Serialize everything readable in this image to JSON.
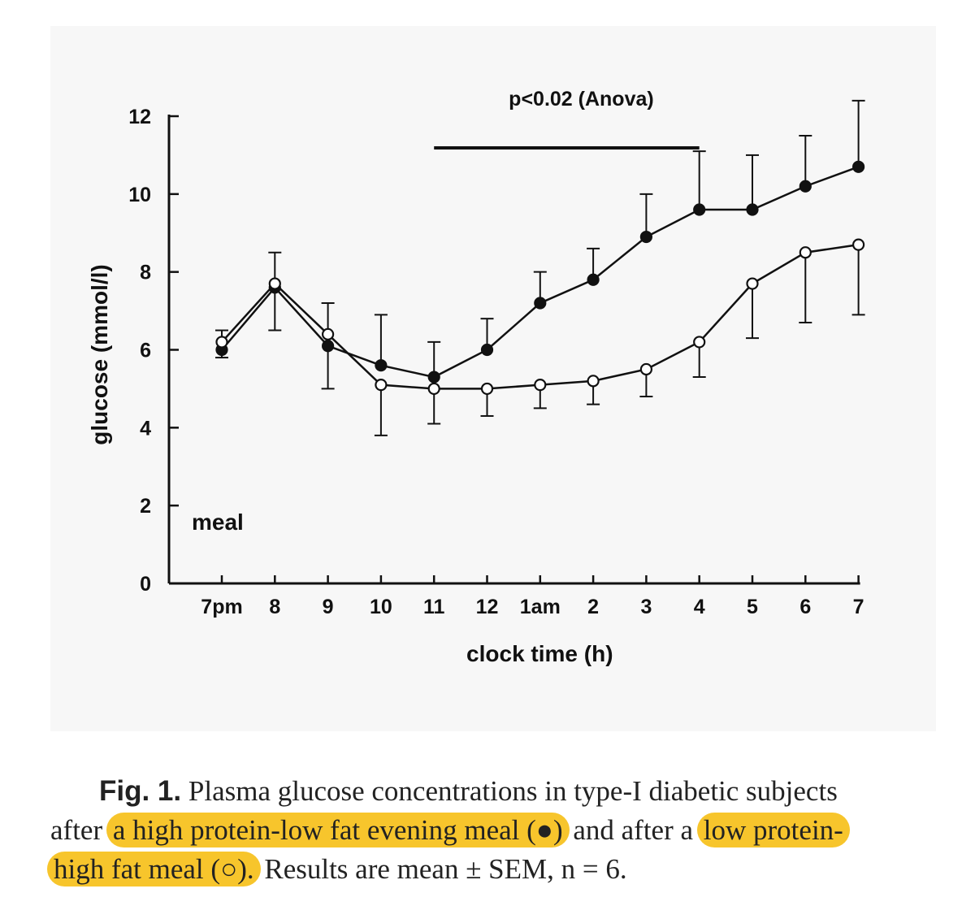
{
  "chart_data": {
    "type": "line",
    "title": "",
    "xlabel": "clock time (h)",
    "ylabel": "glucose (mmol/l)",
    "ylim": [
      0,
      12
    ],
    "yticks": [
      0,
      2,
      4,
      6,
      8,
      10,
      12
    ],
    "categories": [
      "7pm",
      "8",
      "9",
      "10",
      "11",
      "12",
      "1am",
      "2",
      "3",
      "4",
      "5",
      "6",
      "7"
    ],
    "grid": false,
    "legend": "none",
    "series": [
      {
        "marker": "filled-circle",
        "values": [
          6.0,
          7.6,
          6.1,
          5.6,
          5.3,
          6.0,
          7.2,
          7.8,
          8.9,
          9.6,
          9.6,
          10.2,
          10.7
        ],
        "err": [
          0.5,
          0.9,
          1.1,
          1.3,
          0.9,
          0.8,
          0.8,
          0.8,
          1.1,
          1.5,
          1.4,
          1.3,
          1.7
        ],
        "color": "#111111"
      },
      {
        "marker": "open-circle",
        "values": [
          6.2,
          7.7,
          6.4,
          5.1,
          5.0,
          5.0,
          5.1,
          5.2,
          5.5,
          6.2,
          7.7,
          8.5,
          8.7
        ],
        "err": [
          0.4,
          1.2,
          1.4,
          1.3,
          0.9,
          0.7,
          0.6,
          0.6,
          0.7,
          0.9,
          1.4,
          1.8,
          1.8
        ],
        "color": "#111111"
      }
    ],
    "annotations": [
      {
        "text": "p<0.02 (Anova)",
        "x_from": "11",
        "x_to": "4"
      },
      {
        "text": "meal"
      }
    ]
  },
  "caption": {
    "fig_label": "Fig. 1.",
    "part1": " Plasma glucose concentrations in type-I diabetic subjects",
    "part2": "after ",
    "hl1": "a high protein-low fat evening meal (",
    "filled_symbol": "●",
    "hl1_end": ")",
    "part3": " and after a ",
    "hl2": "low protein-",
    "hl3": "high fat meal (",
    "open_symbol": "○",
    "hl3_end": ").",
    "part4": " Results are mean ± SEM, n = 6."
  },
  "colors": {
    "highlight": "#f7c52c",
    "panel": "#f7f7f7",
    "ink": "#111111"
  }
}
